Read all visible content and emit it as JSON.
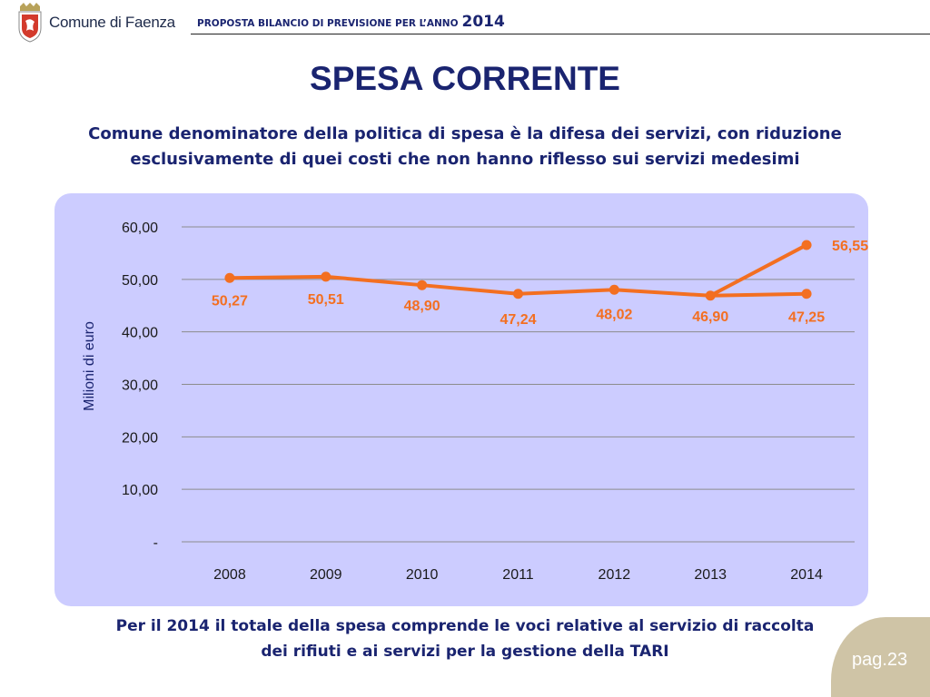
{
  "header": {
    "org_name": "Comune di Faenza",
    "proposal_text": "PROPOSTA BILANCIO DI PREVISIONE PER L’ANNO",
    "proposal_year": "2014"
  },
  "title": "SPESA CORRENTE",
  "subtitle_line1": "Comune denominatore della politica di spesa è la difesa dei servizi, con riduzione",
  "subtitle_line2": "esclusivamente di quei costi che non hanno riflesso sui servizi medesimi",
  "footer_line1": "Per il 2014 il totale della spesa comprende le voci relative al servizio di raccolta",
  "footer_line2": "dei rifiuti e ai servizi per la gestione della TARI",
  "page_label": "pag.23",
  "colors": {
    "accent": "#1a2470",
    "series": "#f36f21",
    "panel": "#ccccff",
    "page_tab": "#cfc4a6"
  },
  "chart_data": {
    "type": "line",
    "title": "",
    "xlabel": "",
    "ylabel": "Milioni di euro",
    "categories": [
      "2008",
      "2009",
      "2010",
      "2011",
      "2012",
      "2013",
      "2014"
    ],
    "ylim": [
      0,
      60
    ],
    "yticks": [
      0,
      10,
      20,
      30,
      40,
      50,
      60
    ],
    "ytick_labels": [
      "-",
      "10,00",
      "20,00",
      "30,00",
      "40,00",
      "50,00",
      "60,00"
    ],
    "grid": true,
    "series": [
      {
        "values": [
          50.27,
          50.51,
          48.9,
          47.24,
          48.02,
          46.9,
          47.25
        ],
        "labels": [
          "50,27",
          "50,51",
          "48,90",
          "47,24",
          "48,02",
          "46,90",
          "47,25"
        ]
      },
      {
        "x": [
          "2013",
          "2014"
        ],
        "values": [
          46.9,
          56.55
        ],
        "labels": [
          "",
          "56,55"
        ]
      }
    ]
  }
}
